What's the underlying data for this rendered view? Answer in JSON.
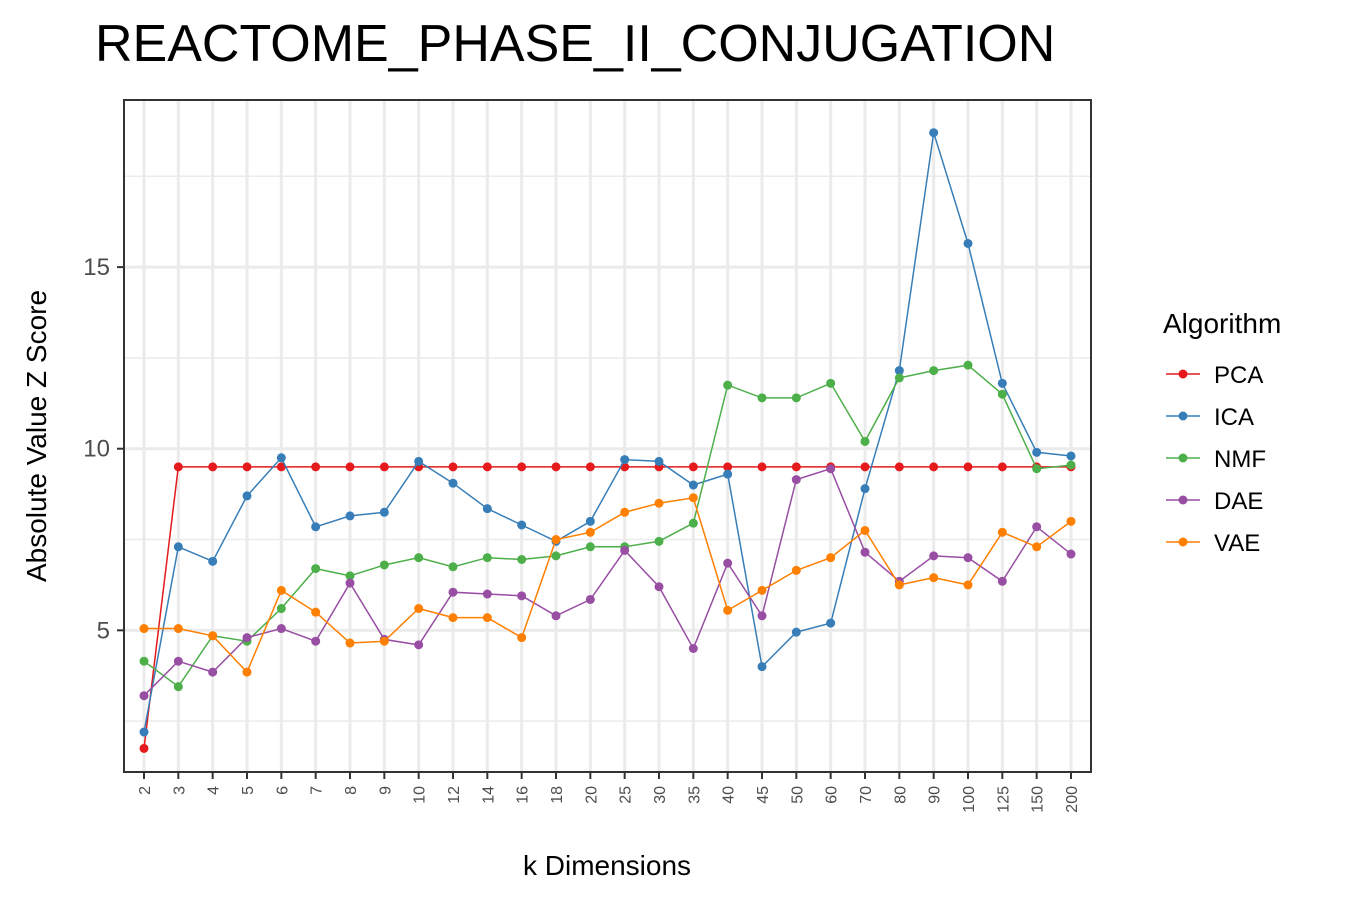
{
  "chart_data": {
    "type": "line",
    "title": "REACTOME_PHASE_II_CONJUGATION",
    "xlabel": "k Dimensions",
    "ylabel": "Absolute Value Z Score",
    "categories": [
      "2",
      "3",
      "4",
      "5",
      "6",
      "7",
      "8",
      "9",
      "10",
      "12",
      "14",
      "16",
      "18",
      "20",
      "25",
      "30",
      "35",
      "40",
      "45",
      "50",
      "60",
      "70",
      "80",
      "90",
      "100",
      "125",
      "150",
      "200"
    ],
    "yticks": [
      "5",
      "10",
      "15"
    ],
    "ylim": [
      1.1,
      19.6
    ],
    "grid": true,
    "legend": {
      "title": "Algorithm",
      "position": "right"
    },
    "series": [
      {
        "name": "PCA",
        "color": "#e41a1c",
        "values": [
          1.75,
          9.5,
          9.5,
          9.5,
          9.5,
          9.5,
          9.5,
          9.5,
          9.5,
          9.5,
          9.5,
          9.5,
          9.5,
          9.5,
          9.5,
          9.5,
          9.5,
          9.5,
          9.5,
          9.5,
          9.5,
          9.5,
          9.5,
          9.5,
          9.5,
          9.5,
          9.5,
          9.5
        ]
      },
      {
        "name": "ICA",
        "color": "#377eb8",
        "values": [
          2.2,
          7.3,
          6.9,
          8.7,
          9.75,
          7.85,
          8.15,
          8.25,
          9.65,
          9.05,
          8.35,
          7.9,
          7.45,
          8.0,
          9.7,
          9.65,
          9.0,
          9.3,
          4.0,
          4.95,
          5.2,
          8.9,
          12.15,
          18.7,
          15.65,
          11.8,
          9.9,
          9.8
        ]
      },
      {
        "name": "NMF",
        "color": "#4daf4a",
        "values": [
          4.15,
          3.45,
          4.85,
          4.7,
          5.6,
          6.7,
          6.5,
          6.8,
          7.0,
          6.75,
          7.0,
          6.95,
          7.05,
          7.3,
          7.3,
          7.45,
          7.95,
          11.75,
          11.4,
          11.4,
          11.8,
          10.2,
          11.95,
          12.15,
          12.3,
          11.5,
          9.45,
          9.55
        ]
      },
      {
        "name": "DAE",
        "color": "#984ea3",
        "values": [
          3.2,
          4.15,
          3.85,
          4.8,
          5.05,
          4.7,
          6.3,
          4.75,
          4.6,
          6.05,
          6.0,
          5.95,
          5.4,
          5.85,
          7.2,
          6.2,
          4.5,
          6.85,
          5.4,
          9.15,
          9.45,
          7.15,
          6.35,
          7.05,
          7.0,
          6.35,
          7.85,
          7.1
        ]
      },
      {
        "name": "VAE",
        "color": "#ff7f00",
        "values": [
          5.05,
          5.05,
          4.85,
          3.85,
          6.1,
          5.5,
          4.65,
          4.7,
          5.6,
          5.35,
          5.35,
          4.8,
          7.5,
          7.7,
          8.25,
          8.5,
          8.65,
          5.55,
          6.1,
          6.65,
          7.0,
          7.75,
          6.25,
          6.45,
          6.25,
          7.7,
          7.3,
          8.0
        ]
      }
    ]
  }
}
